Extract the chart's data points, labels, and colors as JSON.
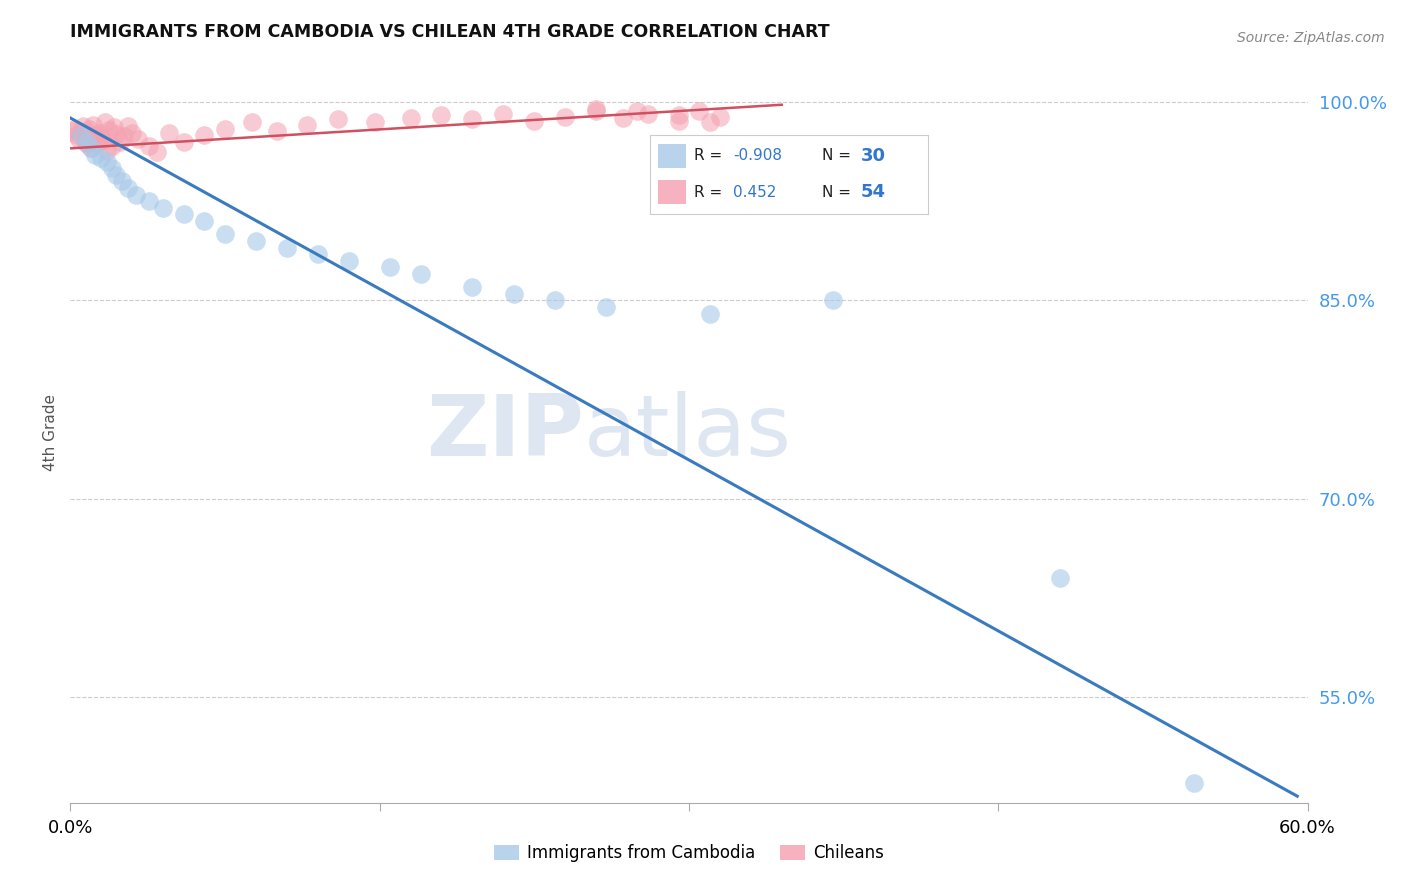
{
  "title": "IMMIGRANTS FROM CAMBODIA VS CHILEAN 4TH GRADE CORRELATION CHART",
  "source": "Source: ZipAtlas.com",
  "ylabel": "4th Grade",
  "ytick_labels": [
    "100.0%",
    "85.0%",
    "70.0%",
    "55.0%"
  ],
  "ytick_values": [
    1.0,
    0.85,
    0.7,
    0.55
  ],
  "xlim": [
    0.0,
    0.6
  ],
  "ylim": [
    0.47,
    1.03
  ],
  "legend_blue_R": "-0.908",
  "legend_blue_N": "30",
  "legend_pink_R": "0.452",
  "legend_pink_N": "54",
  "legend_label_blue": "Immigrants from Cambodia",
  "legend_label_pink": "Chileans",
  "blue_color": "#a8c8e8",
  "pink_color": "#f4a0b0",
  "blue_line_color": "#3a7abf",
  "pink_line_color": "#d05060",
  "blue_scatter_x": [
    0.005,
    0.008,
    0.01,
    0.012,
    0.015,
    0.018,
    0.02,
    0.022,
    0.025,
    0.028,
    0.032,
    0.038,
    0.045,
    0.055,
    0.065,
    0.075,
    0.09,
    0.105,
    0.12,
    0.135,
    0.155,
    0.17,
    0.195,
    0.215,
    0.235,
    0.26,
    0.31,
    0.37,
    0.48,
    0.545
  ],
  "blue_scatter_y": [
    0.975,
    0.97,
    0.965,
    0.96,
    0.958,
    0.955,
    0.95,
    0.945,
    0.94,
    0.935,
    0.93,
    0.925,
    0.92,
    0.915,
    0.91,
    0.9,
    0.895,
    0.89,
    0.885,
    0.88,
    0.875,
    0.87,
    0.86,
    0.855,
    0.85,
    0.845,
    0.84,
    0.85,
    0.64,
    0.485
  ],
  "pink_scatter_x": [
    0.001,
    0.002,
    0.003,
    0.004,
    0.005,
    0.006,
    0.007,
    0.008,
    0.009,
    0.01,
    0.011,
    0.012,
    0.013,
    0.014,
    0.015,
    0.016,
    0.017,
    0.018,
    0.019,
    0.02,
    0.021,
    0.022,
    0.024,
    0.026,
    0.028,
    0.03,
    0.033,
    0.038,
    0.042,
    0.048,
    0.055,
    0.065,
    0.075,
    0.088,
    0.1,
    0.115,
    0.13,
    0.148,
    0.165,
    0.18,
    0.195,
    0.21,
    0.225,
    0.24,
    0.255,
    0.268,
    0.28,
    0.295,
    0.305,
    0.315,
    0.255,
    0.275,
    0.295,
    0.31
  ],
  "pink_scatter_y": [
    0.978,
    0.98,
    0.975,
    0.972,
    0.977,
    0.982,
    0.97,
    0.968,
    0.98,
    0.965,
    0.983,
    0.975,
    0.969,
    0.977,
    0.973,
    0.971,
    0.985,
    0.963,
    0.979,
    0.967,
    0.981,
    0.976,
    0.97,
    0.974,
    0.982,
    0.977,
    0.972,
    0.967,
    0.962,
    0.977,
    0.97,
    0.975,
    0.98,
    0.985,
    0.978,
    0.983,
    0.987,
    0.985,
    0.988,
    0.99,
    0.987,
    0.991,
    0.986,
    0.989,
    0.993,
    0.988,
    0.991,
    0.986,
    0.993,
    0.989,
    0.995,
    0.993,
    0.99,
    0.985
  ],
  "blue_trend_x": [
    0.0,
    0.595
  ],
  "blue_trend_y": [
    0.988,
    0.475
  ],
  "pink_trend_x": [
    0.0,
    0.345
  ],
  "pink_trend_y": [
    0.965,
    0.998
  ],
  "watermark_zip": "ZIP",
  "watermark_atlas": "atlas",
  "background_color": "#ffffff",
  "grid_color": "#cccccc"
}
